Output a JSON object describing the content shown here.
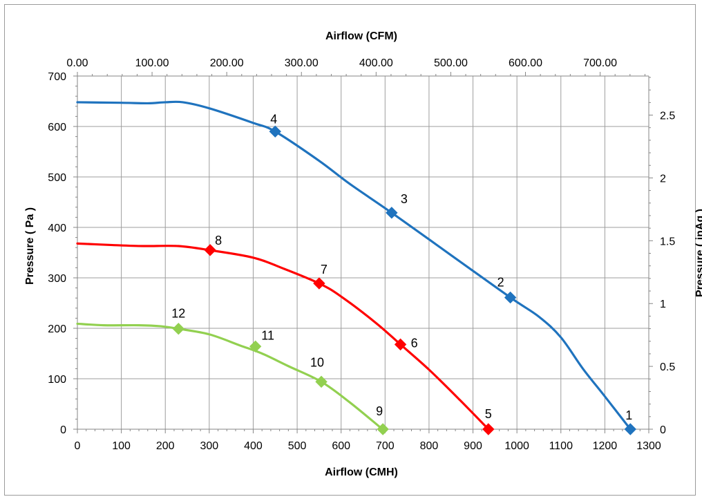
{
  "chart_data": {
    "type": "line",
    "title": "",
    "xlabel": "Airflow (CMH)",
    "x2label": "Airflow (CFM)",
    "ylabel": "Pressure ( Pa )",
    "y2label": "Pressure ( inAq )",
    "xlim": [
      0,
      1300
    ],
    "ylim": [
      0,
      700
    ],
    "x2lim": [
      0,
      765.15
    ],
    "y2lim": [
      0,
      2.811
    ],
    "x_ticks": [
      0,
      100,
      200,
      300,
      400,
      500,
      600,
      700,
      800,
      900,
      1000,
      1100,
      1200,
      1300
    ],
    "x_tick_labels": [
      "0",
      "100",
      "200",
      "300",
      "400",
      "500",
      "600",
      "700",
      "800",
      "900",
      "1000",
      "1100",
      "1200",
      "1300"
    ],
    "y_ticks": [
      0,
      100,
      200,
      300,
      400,
      500,
      600,
      700
    ],
    "y_tick_labels": [
      "0",
      "100",
      "200",
      "300",
      "400",
      "500",
      "600",
      "700"
    ],
    "x2_ticks": [
      0,
      100,
      200,
      300,
      400,
      500,
      600,
      700
    ],
    "x2_tick_labels": [
      "0.00",
      "100.00",
      "200.00",
      "300.00",
      "400.00",
      "500.00",
      "600.00",
      "700.00"
    ],
    "y2_ticks": [
      0,
      0.5,
      1,
      1.5,
      2,
      2.5
    ],
    "y2_tick_labels": [
      "0",
      "0.5",
      "1",
      "1.5",
      "2",
      "2.5"
    ],
    "grid": true,
    "legend": "none",
    "series": [
      {
        "color": "#1f73be",
        "curve": [
          [
            0,
            648
          ],
          [
            100,
            647
          ],
          [
            160,
            646
          ],
          [
            200,
            648
          ],
          [
            240,
            648
          ],
          [
            300,
            636
          ],
          [
            400,
            607
          ],
          [
            450,
            590
          ],
          [
            550,
            532
          ],
          [
            620,
            486
          ],
          [
            715,
            429
          ],
          [
            850,
            345
          ],
          [
            985,
            261
          ],
          [
            1050,
            223
          ],
          [
            1100,
            182
          ],
          [
            1150,
            120
          ],
          [
            1200,
            65
          ],
          [
            1258,
            0
          ]
        ],
        "points": [
          {
            "label": "1",
            "x": 1258,
            "y": 0
          },
          {
            "label": "2",
            "x": 985,
            "y": 261
          },
          {
            "label": "3",
            "x": 715,
            "y": 429
          },
          {
            "label": "4",
            "x": 450,
            "y": 590
          }
        ]
      },
      {
        "color": "#ff0000",
        "curve": [
          [
            0,
            368
          ],
          [
            80,
            365
          ],
          [
            150,
            363
          ],
          [
            230,
            363
          ],
          [
            300,
            355
          ],
          [
            400,
            340
          ],
          [
            470,
            318
          ],
          [
            550,
            289
          ],
          [
            600,
            263
          ],
          [
            680,
            210
          ],
          [
            735,
            168
          ],
          [
            800,
            118
          ],
          [
            870,
            58
          ],
          [
            935,
            0
          ]
        ],
        "points": [
          {
            "label": "5",
            "x": 935,
            "y": 0
          },
          {
            "label": "6",
            "x": 735,
            "y": 168
          },
          {
            "label": "7",
            "x": 550,
            "y": 289
          },
          {
            "label": "8",
            "x": 302,
            "y": 355
          }
        ]
      },
      {
        "color": "#92d050",
        "curve": [
          [
            0,
            209
          ],
          [
            60,
            206
          ],
          [
            140,
            206
          ],
          [
            190,
            204
          ],
          [
            230,
            199
          ],
          [
            300,
            188
          ],
          [
            370,
            166
          ],
          [
            420,
            150
          ],
          [
            480,
            125
          ],
          [
            555,
            94
          ],
          [
            620,
            53
          ],
          [
            690,
            3
          ],
          [
            695,
            0
          ]
        ],
        "points": [
          {
            "label": "9",
            "x": 695,
            "y": 0
          },
          {
            "label": "10",
            "x": 555,
            "y": 94
          },
          {
            "label": "11",
            "x": 405,
            "y": 164
          },
          {
            "label": "12",
            "x": 230,
            "y": 199
          }
        ]
      }
    ]
  }
}
